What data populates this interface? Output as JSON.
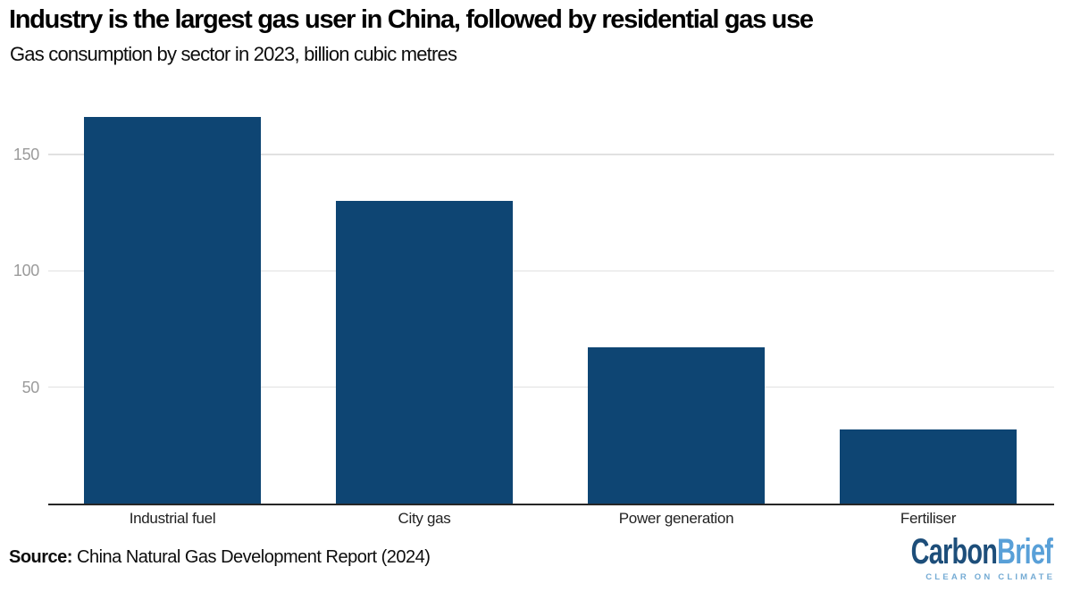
{
  "title": "Industry is the largest gas user in China, followed by residential gas use",
  "subtitle": "Gas consumption by sector in 2023, billion cubic metres",
  "source": {
    "label": "Source:",
    "text": " China Natural Gas Development Report (2024)"
  },
  "logo": {
    "carbon": "Carbon",
    "brief": "Brief",
    "tagline": "CLEAR ON CLIMATE",
    "carbon_color": "#1d4e7a",
    "brief_color": "#59a0d8",
    "tagline_color": "#74abd4"
  },
  "chart_data": {
    "type": "bar",
    "title": "Industry is the largest gas user in China, followed by residential gas use",
    "subtitle": "Gas consumption by sector in 2023, billion cubic metres",
    "categories": [
      "Industrial fuel",
      "City gas",
      "Power generation",
      "Fertiliser"
    ],
    "values": [
      166,
      130,
      67,
      32
    ],
    "xlabel": "",
    "ylabel": "billion cubic metres",
    "yticks": [
      50,
      100,
      150
    ],
    "ylim": [
      0,
      175
    ],
    "grid": "horizontal",
    "legend": "none",
    "bar_color": "#0e4573",
    "gridline_color": "#e1e1e1",
    "tick_label_color": "#9b9b9b"
  }
}
